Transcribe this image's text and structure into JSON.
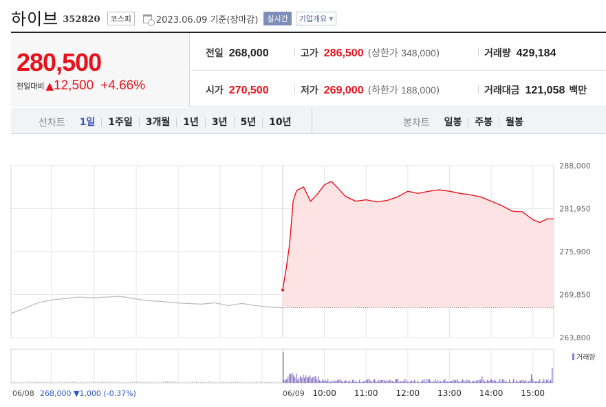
{
  "header": {
    "name": "하이브",
    "code": "352820",
    "market": "코스피",
    "date": "2023.06.09 기준(장마감)",
    "realtime": "실시간",
    "company": "기업개요"
  },
  "price": {
    "current": "280,500",
    "change_label": "전일대비",
    "change_arrow": "▲",
    "change_value": "12,500",
    "change_pct": "+4.66%"
  },
  "stats": {
    "prev_close_label": "전일",
    "prev_close": "268,000",
    "high_label": "고가",
    "high": "286,500",
    "upper_limit_label": "(상한가",
    "upper_limit": "348,000",
    "close_paren": ")",
    "volume_label": "거래량",
    "volume": "429,184",
    "open_label": "시가",
    "open": "270,500",
    "low_label": "저가",
    "low": "269,000",
    "lower_limit_label": "(하한가",
    "lower_limit": "188,000",
    "amount_label": "거래대금",
    "amount": "121,058",
    "amount_unit": "백만"
  },
  "tabs": {
    "line_title": "선차트",
    "line": [
      "1일",
      "1주일",
      "3개월",
      "1년",
      "3년",
      "5년",
      "10년"
    ],
    "line_active": 0,
    "candle_title": "봉차트",
    "candle": [
      "일봉",
      "주봉",
      "월봉"
    ]
  },
  "colors": {
    "up": "#e8111b",
    "prev_line": "#bcbcbc",
    "fill": "#fde3e3",
    "volume": "#8b7bc8",
    "grid": "#e6e6e6"
  },
  "chart_data": {
    "type": "line",
    "y_ticks": [
      "288,000",
      "281,950",
      "275,900",
      "269,850",
      "263,800"
    ],
    "ylim": [
      263800,
      288000
    ],
    "baseline": 268000,
    "x_labels": [
      "06/08",
      "06/09",
      "10:00",
      "11:00",
      "12:00",
      "13:00",
      "14:00",
      "15:00"
    ],
    "prev_day_summary": {
      "date": "06/08",
      "close": "268,000",
      "change": "▼1,000",
      "pct": "(-0.37%)"
    },
    "volume_legend": "거래량",
    "prev_day": {
      "time": [
        0,
        0.05,
        0.1,
        0.15,
        0.2,
        0.25,
        0.3,
        0.35,
        0.4,
        0.45,
        0.5,
        0.55,
        0.6,
        0.65,
        0.7,
        0.75,
        0.8,
        0.85,
        0.9,
        0.95,
        1.0
      ],
      "price": [
        267200,
        267900,
        268700,
        269100,
        269300,
        269500,
        269400,
        269500,
        269600,
        269300,
        269000,
        268900,
        268700,
        268600,
        268500,
        268700,
        268300,
        268600,
        268300,
        268100,
        268000
      ]
    },
    "today": {
      "time": [
        "09:00",
        "09:05",
        "09:10",
        "09:15",
        "09:20",
        "09:30",
        "09:40",
        "09:50",
        "10:00",
        "10:10",
        "10:20",
        "10:30",
        "10:45",
        "11:00",
        "11:15",
        "11:30",
        "11:45",
        "12:00",
        "12:15",
        "12:30",
        "12:45",
        "13:00",
        "13:15",
        "13:30",
        "13:45",
        "14:00",
        "14:15",
        "14:30",
        "14:45",
        "15:00",
        "15:10",
        "15:20",
        "15:30"
      ],
      "price": [
        270500,
        273500,
        277000,
        283000,
        284500,
        285000,
        283000,
        284000,
        285300,
        285800,
        284800,
        283700,
        283000,
        283200,
        282900,
        283100,
        283600,
        284400,
        284100,
        284400,
        284600,
        284400,
        284100,
        283900,
        283600,
        283000,
        282400,
        281600,
        281500,
        280400,
        280000,
        280500,
        280500
      ]
    }
  }
}
